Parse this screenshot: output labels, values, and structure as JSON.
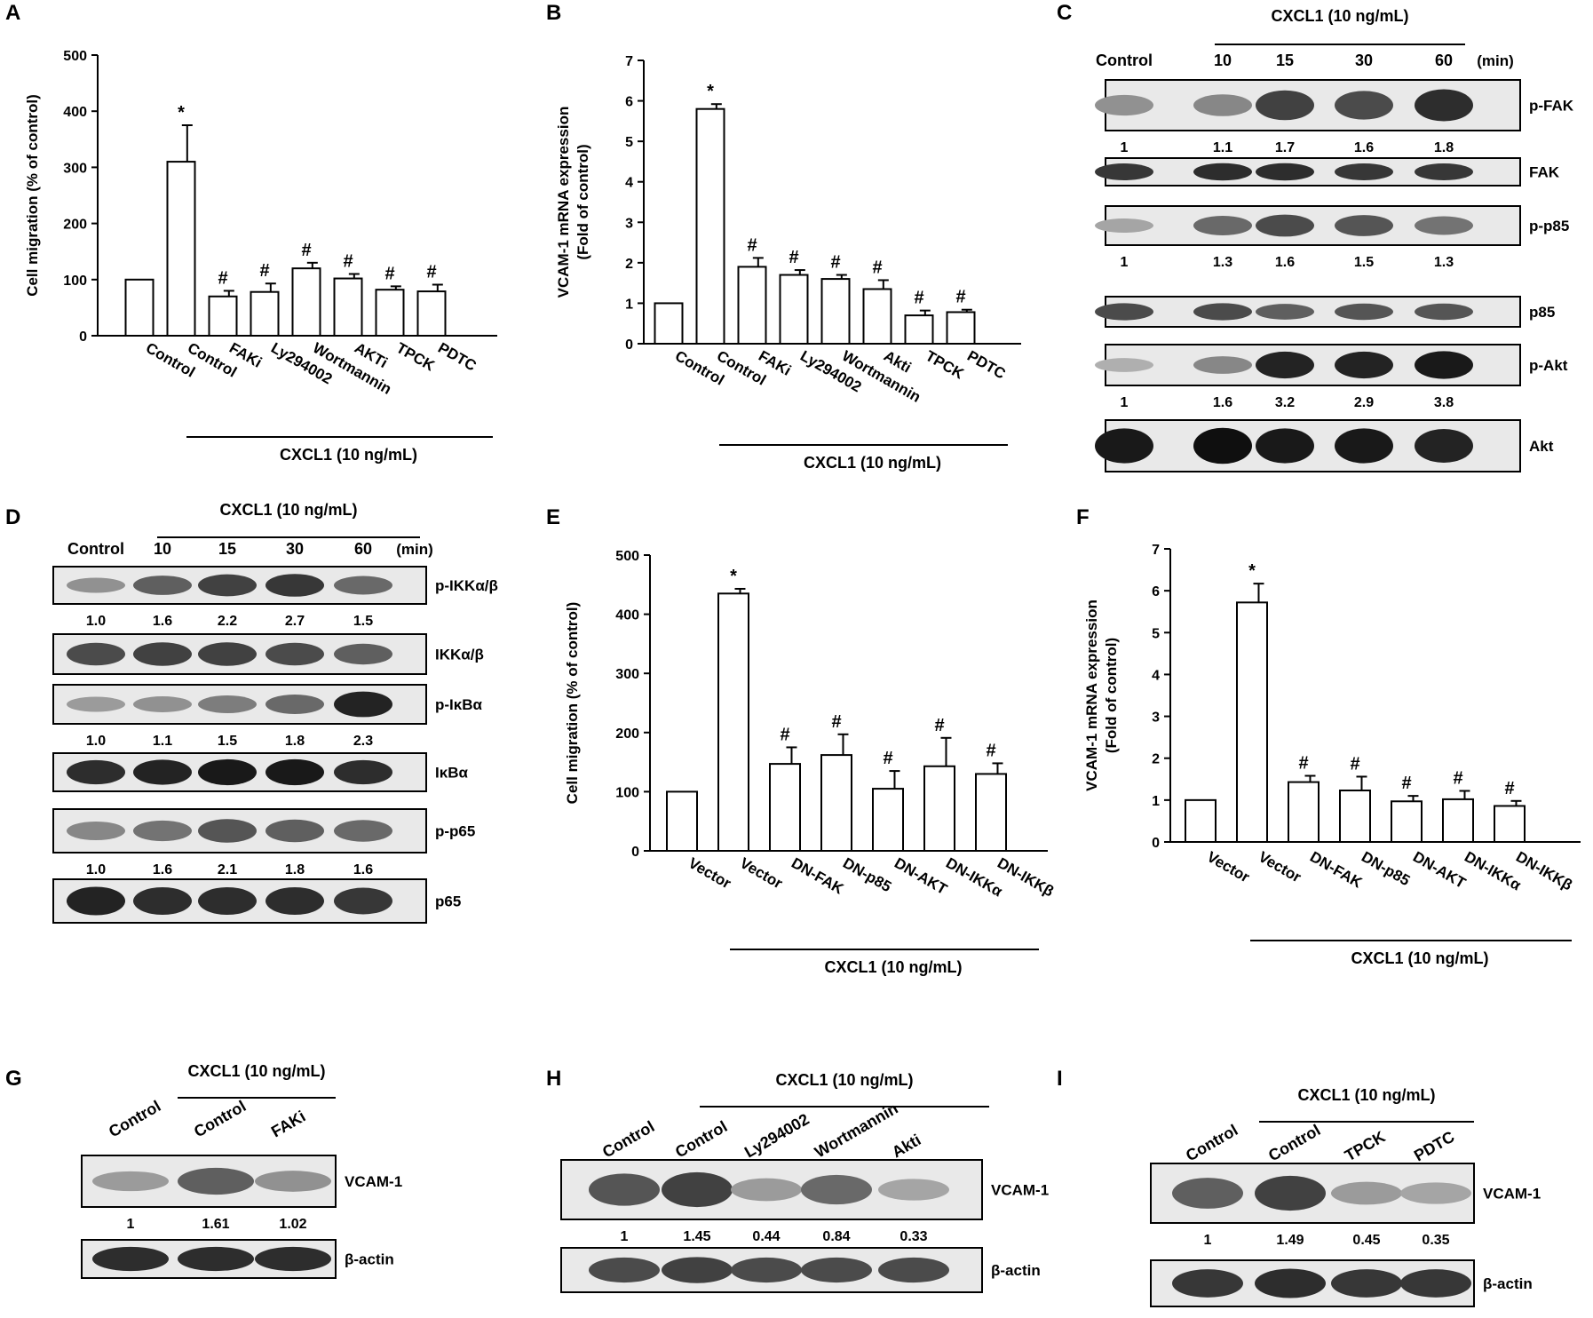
{
  "panel_letters": [
    "A",
    "B",
    "C",
    "D",
    "E",
    "F",
    "G",
    "H",
    "I"
  ],
  "common": {
    "cxcl1": "CXCL1 (10 ng/mL)",
    "min": "(min)",
    "star": "*",
    "hash": "#"
  },
  "chart_data": [
    {
      "panel": "A",
      "type": "bar",
      "ylabel": "Cell migration (% of control)",
      "ylim": [
        0,
        500
      ],
      "yticks": [
        0,
        100,
        200,
        300,
        400,
        500
      ],
      "categories": [
        "Control",
        "Control",
        "FAKi",
        "Ly294002",
        "Wortmannin",
        "AKTi",
        "TPCK",
        "PDTC"
      ],
      "values": [
        100,
        310,
        70,
        78,
        120,
        102,
        82,
        79
      ],
      "errors": [
        0,
        65,
        10,
        15,
        10,
        8,
        6,
        12
      ],
      "marks": [
        "",
        "*",
        "#",
        "#",
        "#",
        "#",
        "#",
        "#"
      ],
      "group_label": "CXCL1 (10 ng/mL)"
    },
    {
      "panel": "B",
      "type": "bar",
      "ylabel": [
        "VCAM-1 mRNA expression",
        "(Fold of control)"
      ],
      "ylim": [
        0,
        7
      ],
      "yticks": [
        0,
        1,
        2,
        3,
        4,
        5,
        6,
        7
      ],
      "categories": [
        "Control",
        "Control",
        "FAKi",
        "Ly294002",
        "Wortmannin",
        "Akti",
        "TPCK",
        "PDTC"
      ],
      "values": [
        1.0,
        5.8,
        1.9,
        1.7,
        1.6,
        1.35,
        0.7,
        0.78
      ],
      "errors": [
        0,
        0.12,
        0.22,
        0.12,
        0.1,
        0.22,
        0.12,
        0.06
      ],
      "marks": [
        "",
        "*",
        "#",
        "#",
        "#",
        "#",
        "#",
        "#"
      ],
      "group_label": "CXCL1 (10 ng/mL)"
    },
    {
      "panel": "E",
      "type": "bar",
      "ylabel": "Cell migration (% of control)",
      "ylim": [
        0,
        500
      ],
      "yticks": [
        0,
        100,
        200,
        300,
        400,
        500
      ],
      "categories": [
        "Vector",
        "Vector",
        "DN-FAK",
        "DN-p85",
        "DN-AKT",
        "DN-IKKα",
        "DN-IKKβ"
      ],
      "values": [
        100,
        435,
        147,
        162,
        105,
        143,
        130
      ],
      "errors": [
        0,
        8,
        28,
        35,
        30,
        48,
        18
      ],
      "marks": [
        "",
        "*",
        "#",
        "#",
        "#",
        "#",
        "#"
      ],
      "group_label": "CXCL1 (10 ng/mL)"
    },
    {
      "panel": "F",
      "type": "bar",
      "ylabel": [
        "VCAM-1 mRNA expression",
        "(Fold of control)"
      ],
      "ylim": [
        0,
        7
      ],
      "yticks": [
        0,
        1,
        2,
        3,
        4,
        5,
        6,
        7
      ],
      "categories": [
        "Vector",
        "Vector",
        "DN-FAK",
        "DN-p85",
        "DN-AKT",
        "DN-IKKα",
        "DN-IKKβ"
      ],
      "values": [
        1.0,
        5.72,
        1.43,
        1.23,
        0.97,
        1.02,
        0.86
      ],
      "errors": [
        0,
        0.45,
        0.15,
        0.33,
        0.13,
        0.2,
        0.12
      ],
      "marks": [
        "",
        "*",
        "#",
        "#",
        "#",
        "#",
        "#"
      ],
      "group_label": "CXCL1 (10 ng/mL)"
    }
  ],
  "blots": {
    "C": {
      "columns": [
        "Control",
        "10",
        "15",
        "30",
        "60"
      ],
      "time_unit": "(min)",
      "treatment": "CXCL1 (10 ng/mL)",
      "rows": [
        {
          "label": "p-FAK",
          "bands": [
            0.35,
            0.4,
            0.75,
            0.7,
            0.85
          ],
          "quant": [
            "1",
            "1.1",
            "1.7",
            "1.6",
            "1.8"
          ]
        },
        {
          "label": "FAK",
          "bands": [
            0.8,
            0.85,
            0.85,
            0.8,
            0.8
          ],
          "quant": null
        },
        {
          "label": "p-p85",
          "bands": [
            0.25,
            0.55,
            0.7,
            0.65,
            0.5
          ],
          "quant": [
            "1",
            "1.3",
            "1.6",
            "1.5",
            "1.3"
          ]
        },
        {
          "label": "p85",
          "bands": [
            0.7,
            0.7,
            0.6,
            0.65,
            0.65
          ],
          "quant": null
        },
        {
          "label": "p-Akt",
          "bands": [
            0.2,
            0.4,
            0.9,
            0.9,
            0.95
          ],
          "quant": [
            "1",
            "1.6",
            "3.2",
            "2.9",
            "3.8"
          ]
        },
        {
          "label": "Akt",
          "bands": [
            0.95,
            1.0,
            0.95,
            0.95,
            0.9
          ],
          "quant": null
        }
      ]
    },
    "D": {
      "columns": [
        "Control",
        "10",
        "15",
        "30",
        "60"
      ],
      "time_unit": "(min)",
      "treatment": "CXCL1 (10 ng/mL)",
      "rows": [
        {
          "label": "p-IKKα/β",
          "bands": [
            0.35,
            0.6,
            0.75,
            0.8,
            0.55
          ],
          "quant": [
            "1.0",
            "1.6",
            "2.2",
            "2.7",
            "1.5"
          ]
        },
        {
          "label": "IKKα/β",
          "bands": [
            0.7,
            0.75,
            0.75,
            0.7,
            0.6
          ],
          "quant": null
        },
        {
          "label": "p-IκBα",
          "bands": [
            0.3,
            0.35,
            0.45,
            0.55,
            0.9
          ],
          "quant": [
            "1.0",
            "1.1",
            "1.5",
            "1.8",
            "2.3"
          ]
        },
        {
          "label": "IκBα",
          "bands": [
            0.85,
            0.9,
            0.95,
            0.95,
            0.85
          ],
          "quant": null
        },
        {
          "label": "p-p65",
          "bands": [
            0.4,
            0.5,
            0.65,
            0.6,
            0.55
          ],
          "quant": [
            "1.0",
            "1.6",
            "2.1",
            "1.8",
            "1.6"
          ]
        },
        {
          "label": "p65",
          "bands": [
            0.9,
            0.85,
            0.85,
            0.85,
            0.8
          ],
          "quant": null
        }
      ]
    },
    "G": {
      "columns": [
        "Control",
        "Control",
        "FAKi"
      ],
      "treatment": "CXCL1 (10 ng/mL)",
      "rows": [
        {
          "label": "VCAM-1",
          "bands": [
            0.3,
            0.6,
            0.35
          ],
          "quant": [
            "1",
            "1.61",
            "1.02"
          ]
        },
        {
          "label": "β-actin",
          "bands": [
            0.85,
            0.85,
            0.85
          ],
          "quant": null
        }
      ]
    },
    "H": {
      "columns": [
        "Control",
        "Control",
        "Ly294002",
        "Wortmannin",
        "Akti"
      ],
      "treatment": "CXCL1 (10 ng/mL)",
      "rows": [
        {
          "label": "VCAM-1",
          "bands": [
            0.65,
            0.75,
            0.3,
            0.55,
            0.25
          ],
          "quant": [
            "1",
            "1.45",
            "0.44",
            "0.84",
            "0.33"
          ]
        },
        {
          "label": "β-actin",
          "bands": [
            0.7,
            0.75,
            0.7,
            0.7,
            0.7
          ],
          "quant": null
        }
      ]
    },
    "I": {
      "columns": [
        "Control",
        "Control",
        "TPCK",
        "PDTC"
      ],
      "treatment": "CXCL1 (10 ng/mL)",
      "rows": [
        {
          "label": "VCAM-1",
          "bands": [
            0.6,
            0.75,
            0.3,
            0.25
          ],
          "quant": [
            "1",
            "1.49",
            "0.45",
            "0.35"
          ]
        },
        {
          "label": "β-actin",
          "bands": [
            0.8,
            0.85,
            0.8,
            0.8
          ],
          "quant": null
        }
      ]
    }
  }
}
